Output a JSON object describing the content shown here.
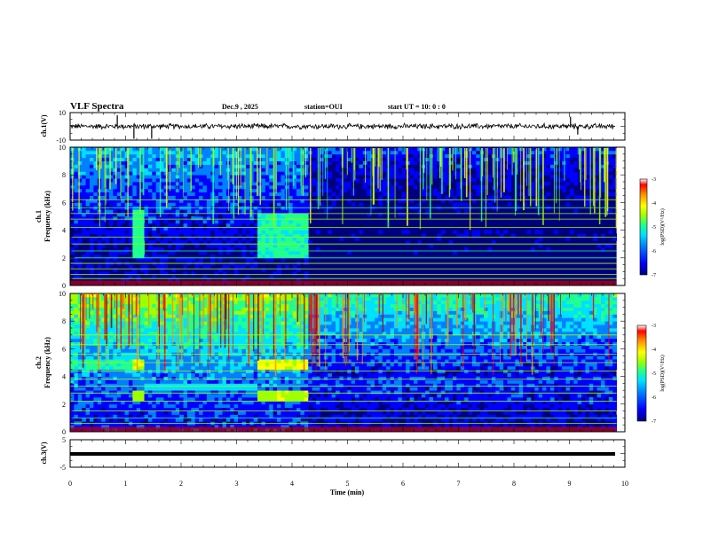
{
  "header": {
    "title": "VLF Spectra",
    "date": "Dec.9  , 2025",
    "station": "station=OUI",
    "start_ut": "start  UT  =    10: 0   : 0"
  },
  "colors": {
    "spec_scale": [
      "#00007f",
      "#0000ff",
      "#0080ff",
      "#00e0ff",
      "#20ff90",
      "#a0ff00",
      "#ffff00",
      "#ff9000",
      "#ff0000",
      "#a00000"
    ],
    "axis": "#000000",
    "background": "#ffffff"
  },
  "chart_data": [
    {
      "type": "line",
      "name": "ch1-waveform",
      "ylabel": "ch.1(V)",
      "ytick_labels": [
        "10",
        "-10"
      ],
      "ylim": [
        -10,
        10
      ],
      "xlim": [
        0,
        10
      ],
      "description_values": {
        "baseline": 0,
        "noise_amplitude": 1.5
      },
      "spikes": [
        {
          "t": 0.85,
          "v": 8
        },
        {
          "t": 1.15,
          "v": -9
        },
        {
          "t": 1.47,
          "v": -9
        },
        {
          "t": 9.02,
          "v": 7
        },
        {
          "t": 9.15,
          "v": -6
        }
      ]
    },
    {
      "type": "heatmap",
      "name": "ch1-spectrogram",
      "ylabel": "Frequency  (kHz)",
      "channel_label": "ch.1",
      "ytick_labels": [
        "10",
        "8",
        "6",
        "4",
        "2",
        "0"
      ],
      "yticks": [
        10,
        8,
        6,
        4,
        2,
        0
      ],
      "ylim": [
        0,
        10
      ],
      "xlim": [
        0,
        9.85
      ],
      "hum_lines_khz": [
        0.5,
        0.8,
        1.2,
        1.6,
        2.0,
        2.5,
        3.0,
        3.5,
        4.2,
        4.8,
        5.2,
        5.6,
        6.2
      ],
      "bursts": [
        {
          "t0": 1.1,
          "t1": 1.35,
          "f0": 2.0,
          "f1": 5.5,
          "level": 0.45
        },
        {
          "t0": 3.35,
          "t1": 4.3,
          "f0": 2.0,
          "f1": 5.2,
          "level": 0.42
        }
      ],
      "colorbar": {
        "label": "log(PSD)(V²/Hz)",
        "tick_labels": [
          "-3",
          "-4",
          "-5",
          "-6",
          "-7"
        ],
        "range": [
          -7,
          -3
        ]
      }
    },
    {
      "type": "heatmap",
      "name": "ch2-spectrogram",
      "ylabel": "Frequency  (kHz)",
      "channel_label": "ch.2",
      "ytick_labels": [
        "10",
        "8",
        "6",
        "4",
        "2",
        "0"
      ],
      "yticks": [
        10,
        8,
        6,
        4,
        2,
        0
      ],
      "ylim": [
        0,
        10
      ],
      "xlim": [
        0,
        9.85
      ],
      "hum_lines_khz": [
        0.6,
        1.0,
        1.5,
        2.2,
        2.8,
        3.3,
        3.8,
        4.4,
        5.0,
        5.6,
        6.3,
        7.0
      ],
      "bursts": [
        {
          "t0": 1.1,
          "t1": 1.35,
          "f0": 4.5,
          "f1": 5.2,
          "level": 0.6
        },
        {
          "t0": 1.1,
          "t1": 1.35,
          "f0": 2.3,
          "f1": 2.9,
          "level": 0.55
        },
        {
          "t0": 3.35,
          "t1": 4.3,
          "f0": 4.5,
          "f1": 5.3,
          "level": 0.62
        },
        {
          "t0": 3.35,
          "t1": 4.3,
          "f0": 2.2,
          "f1": 3.0,
          "level": 0.58
        },
        {
          "t0": 0.0,
          "t1": 1.1,
          "f0": 4.5,
          "f1": 5.2,
          "level": 0.42
        },
        {
          "t0": 1.35,
          "t1": 3.35,
          "f0": 2.9,
          "f1": 3.4,
          "level": 0.35
        }
      ],
      "colorbar": {
        "label": "log(PSD)(V²/Hz)",
        "tick_labels": [
          "-3",
          "-4",
          "-5",
          "-6",
          "-7"
        ],
        "range": [
          -7,
          -3
        ]
      }
    },
    {
      "type": "line",
      "name": "ch3-waveform",
      "ylabel": "ch.3(V)",
      "ytick_labels": [
        "5",
        "-5"
      ],
      "ylim": [
        -5,
        5
      ],
      "xlim": [
        0,
        10
      ],
      "constant_value": -1.5
    }
  ],
  "xaxis": {
    "label": "Time  (min)",
    "ticks": [
      0,
      1,
      2,
      3,
      4,
      5,
      6,
      7,
      8,
      9,
      10
    ],
    "tick_labels": [
      "0",
      "1",
      "2",
      "3",
      "4",
      "5",
      "6",
      "7",
      "8",
      "9",
      "10"
    ]
  }
}
